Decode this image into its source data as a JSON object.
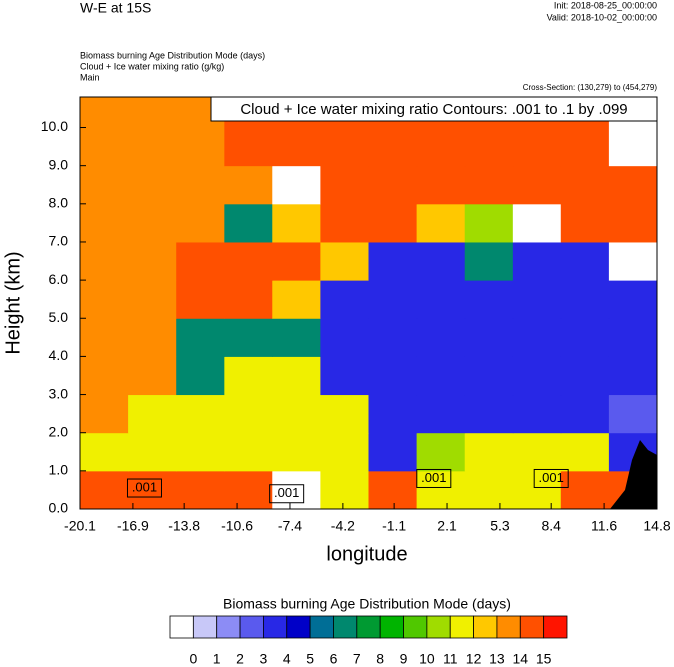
{
  "chart_data": {
    "type": "heatmap",
    "title": "W-E at 15S",
    "init": "Init: 2018-08-25_00:00:00",
    "valid": "Valid: 2018-10-02_00:00:00",
    "subtitles": [
      "Biomass burning Age Distribution Mode   (days)",
      "Cloud + Ice water mixing ratio   (g/kg)",
      "Main"
    ],
    "cross_section": "Cross-Section: (130,279) to (454,279)",
    "annotation": "Cloud + Ice water mixing ratio Contours: .001 to .1 by .099",
    "xlabel": "longitude",
    "ylabel": "Height (km)",
    "xlim": [
      -20.1,
      14.8
    ],
    "xticks": [
      -20.1,
      -16.9,
      -13.8,
      -10.6,
      -7.4,
      -4.2,
      -1.1,
      2.1,
      5.3,
      8.4,
      11.6,
      14.8
    ],
    "ylim": [
      0,
      10.8
    ],
    "yticks": [
      {
        "value": 0,
        "label": "0.0"
      },
      {
        "value": 1,
        "label": "1.0"
      },
      {
        "value": 2,
        "label": "2.0"
      },
      {
        "value": 3,
        "label": "3.0"
      },
      {
        "value": 4,
        "label": "4.0"
      },
      {
        "value": 5,
        "label": "5.0"
      },
      {
        "value": 6,
        "label": "6.0"
      },
      {
        "value": 7,
        "label": "7.0"
      },
      {
        "value": 8,
        "label": "8.0"
      },
      {
        "value": 9,
        "label": "9.0"
      },
      {
        "value": 10,
        "label": "10.0"
      }
    ],
    "x_edges": [
      -20.1,
      -17.19,
      -14.28,
      -11.37,
      -8.47,
      -5.56,
      -2.65,
      0.26,
      3.17,
      6.08,
      8.98,
      11.89,
      14.8
    ],
    "y_edges": [
      0,
      1,
      2,
      3,
      4,
      5,
      6,
      7,
      8,
      9,
      10,
      10.8
    ],
    "z": [
      [
        14.5,
        14.5,
        14.5,
        14.5,
        null,
        11.5,
        14.5,
        11.5,
        11.5,
        11.5,
        14.5,
        14.5
      ],
      [
        11.5,
        11.5,
        11.5,
        11.5,
        11.5,
        11.5,
        3.5,
        10.5,
        11.5,
        11.5,
        11.5,
        3.5
      ],
      [
        13.5,
        11.5,
        11.5,
        11.5,
        11.5,
        11.5,
        3.5,
        3.5,
        3.5,
        3.5,
        3.5,
        2.5
      ],
      [
        13.5,
        13.5,
        6.5,
        11.5,
        11.5,
        3.5,
        3.5,
        3.5,
        3.5,
        3.5,
        3.5,
        3.5
      ],
      [
        13.5,
        13.5,
        6.5,
        6.5,
        6.5,
        3.5,
        3.5,
        3.5,
        3.5,
        3.5,
        3.5,
        3.5
      ],
      [
        13.5,
        13.5,
        14.5,
        14.5,
        12.5,
        3.5,
        3.5,
        3.5,
        3.5,
        3.5,
        3.5,
        3.5
      ],
      [
        13.5,
        13.5,
        14.5,
        14.5,
        14.5,
        12.5,
        3.5,
        3.5,
        6.5,
        3.5,
        3.5,
        null
      ],
      [
        13.5,
        13.5,
        13.5,
        6.5,
        12.5,
        14.5,
        14.5,
        12.5,
        10.5,
        null,
        14.5,
        14.5
      ],
      [
        13.5,
        13.5,
        13.5,
        13.5,
        null,
        14.5,
        14.5,
        14.5,
        14.5,
        14.5,
        14.5,
        14.5
      ],
      [
        13.5,
        13.5,
        13.5,
        14.5,
        14.5,
        14.5,
        14.5,
        14.5,
        14.5,
        14.5,
        14.5,
        null
      ],
      [
        13.5,
        13.5,
        13.5,
        14.5,
        14.5,
        14.5,
        14.5,
        14.5,
        14.5,
        14.5,
        14.5,
        null
      ]
    ],
    "contour_labels": [
      {
        "label": ".001",
        "x": -16.2,
        "y": 0.55
      },
      {
        "label": ".001",
        "x": -7.6,
        "y": 0.4
      },
      {
        "label": ".001",
        "x": 1.3,
        "y": 0.8
      },
      {
        "label": ".001",
        "x": 8.4,
        "y": 0.8
      }
    ],
    "colorbar_title": "Biomass burning Age Distribution Mode  (days)",
    "levels": [
      0,
      1,
      2,
      3,
      4,
      5,
      6,
      7,
      8,
      9,
      10,
      11,
      12,
      13,
      14,
      15
    ],
    "colors": [
      "#ffffff",
      "#c8c8f8",
      "#8c8cf5",
      "#5a5aee",
      "#2828e6",
      "#0000c8",
      "#006e96",
      "#00886e",
      "#009a32",
      "#00b400",
      "#50c800",
      "#a0dc00",
      "#f0f000",
      "#ffc800",
      "#ff8c00",
      "#ff5000",
      "#ff1400"
    ]
  }
}
